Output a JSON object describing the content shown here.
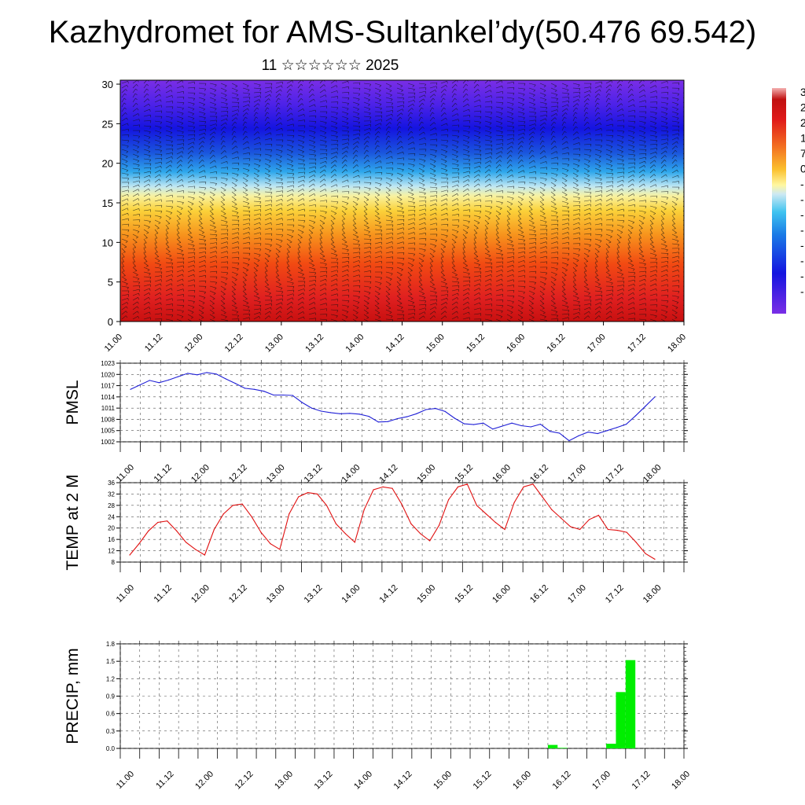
{
  "title": "Kazhydromet for AMS-Sultankel’dy(50.476 69.542)",
  "subtitle": "11 ☆☆☆☆☆☆ 2025",
  "colors": {
    "pmsl": "#1f1fd6",
    "temp": "#e01010",
    "precip": "#00ee00"
  },
  "chart_data": [
    {
      "type": "heatmap",
      "name": "cross-section",
      "xlabel": "",
      "ylabel": "",
      "xticks": [
        "11.00",
        "11.12",
        "12.00",
        "12.12",
        "13.00",
        "13.12",
        "14.00",
        "14.12",
        "15.00",
        "15.12",
        "16.00",
        "16.12",
        "17.00",
        "17.12",
        "18.00"
      ],
      "yticks": [
        "0",
        "5",
        "10",
        "15",
        "20",
        "25",
        "30"
      ],
      "ylim": [
        0,
        30.5
      ],
      "colorbar_labels": [
        "3",
        "2",
        "2",
        "1",
        "7",
        "0",
        "-",
        "-",
        "-",
        "-",
        "-",
        "-",
        "-",
        "-"
      ],
      "overlay": "wind barbs"
    },
    {
      "type": "line",
      "name": "PMSL",
      "ylabel": "PMSL",
      "xticks": [
        "11.00",
        "11.12",
        "12.00",
        "12.12",
        "13.00",
        "13.12",
        "14.00",
        "14.12",
        "15.00",
        "15.12",
        "16.00",
        "16.12",
        "17.00",
        "17.12",
        "18.00"
      ],
      "yticks": [
        "1002",
        "1005",
        "1008",
        "1011",
        "1014",
        "1017",
        "1020",
        "1023"
      ],
      "ylim": [
        1002,
        1023
      ],
      "values": [
        1016,
        1017.2,
        1018.4,
        1017.8,
        1018.5,
        1019.4,
        1020.3,
        1019.9,
        1020.5,
        1020.1,
        1018.8,
        1017.6,
        1016.3,
        1016,
        1015.5,
        1014.5,
        1014.5,
        1014.4,
        1012.5,
        1011,
        1010.2,
        1009.8,
        1009.5,
        1009.6,
        1009.4,
        1008.8,
        1007.3,
        1007.4,
        1008.2,
        1008.7,
        1009.5,
        1010.6,
        1010.9,
        1010.1,
        1008.3,
        1006.8,
        1006.6,
        1007,
        1005.4,
        1006.2,
        1007,
        1006.3,
        1006,
        1006.7,
        1004.8,
        1004.3,
        1002.3,
        1003.6,
        1004.6,
        1004.2,
        1005,
        1005.8,
        1006.7,
        1009,
        1011.5,
        1014
      ]
    },
    {
      "type": "line",
      "name": "TEMP at 2 M",
      "ylabel": "TEMP at 2 M",
      "xticks": [
        "11.00",
        "11.12",
        "12.00",
        "12.12",
        "13.00",
        "13.12",
        "14.00",
        "14.12",
        "15.00",
        "15.12",
        "16.00",
        "16.12",
        "17.00",
        "17.12",
        "18.00"
      ],
      "yticks": [
        "8",
        "12",
        "16",
        "20",
        "24",
        "28",
        "32",
        "36"
      ],
      "ylim": [
        8,
        36
      ],
      "values": [
        10.5,
        14.5,
        19,
        22,
        22.5,
        19,
        15,
        12.5,
        10.5,
        19.5,
        25,
        28,
        28.5,
        24,
        18.5,
        14.5,
        12.5,
        25,
        31,
        32.5,
        32,
        28,
        21.5,
        18,
        15,
        26.5,
        33.5,
        34.5,
        34,
        28.5,
        21.5,
        18,
        15.5,
        21,
        30,
        34.5,
        35.5,
        28,
        25,
        22,
        19.5,
        29,
        34.5,
        35.5,
        31,
        26.5,
        23.5,
        20.5,
        19.5,
        23,
        24.5,
        19.5,
        19.2,
        18.5,
        15,
        11,
        9
      ]
    },
    {
      "type": "bar",
      "name": "PRECIP, mm",
      "ylabel": "PRECIP, mm",
      "xticks": [
        "11.00",
        "11.12",
        "12.00",
        "12.12",
        "13.00",
        "13.12",
        "14.00",
        "14.12",
        "15.00",
        "15.12",
        "16.00",
        "16.12",
        "17.00",
        "17.12",
        "18.00"
      ],
      "yticks": [
        "0.0",
        "0.3",
        "0.6",
        "0.9",
        "1.2",
        "1.5",
        "1.8"
      ],
      "ylim": [
        0,
        1.8
      ],
      "bars": [
        {
          "slot": 44,
          "value": 0.06
        },
        {
          "slot": 45,
          "value": 0.01
        },
        {
          "slot": 50,
          "value": 0.08
        },
        {
          "slot": 51,
          "value": 0.97
        },
        {
          "slot": 52,
          "value": 1.52
        }
      ]
    }
  ]
}
